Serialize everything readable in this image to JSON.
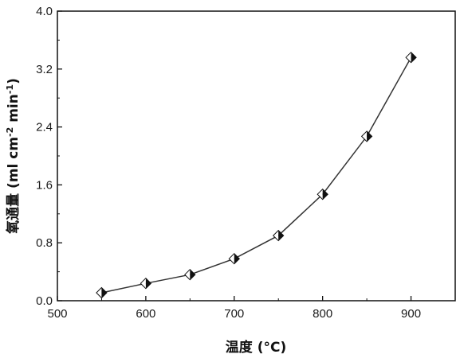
{
  "chart_data": {
    "type": "line",
    "title": "",
    "xlabel": "温度 (°C)",
    "ylabel_main": "氧通量 (ml cm",
    "ylabel_sup1": "-2",
    "ylabel_mid": " min",
    "ylabel_sup2": "-1",
    "ylabel_end": ")",
    "xlim": [
      500,
      950
    ],
    "ylim": [
      0.0,
      4.0
    ],
    "x_ticks": [
      "500",
      "600",
      "700",
      "800",
      "900"
    ],
    "x_tick_values": [
      500,
      600,
      700,
      800,
      900
    ],
    "y_ticks": [
      "0.0",
      "0.8",
      "1.6",
      "2.4",
      "3.2",
      "4.0"
    ],
    "y_tick_values": [
      0.0,
      0.8,
      1.6,
      2.4,
      3.2,
      4.0
    ],
    "grid": false,
    "legend": "none",
    "marker": "half-filled-diamond",
    "line_color": "#333333",
    "series": [
      {
        "x": [
          550,
          600,
          650,
          700,
          750,
          800,
          850,
          900
        ],
        "y": [
          0.11,
          0.24,
          0.36,
          0.58,
          0.9,
          1.47,
          2.27,
          3.36
        ]
      }
    ]
  }
}
